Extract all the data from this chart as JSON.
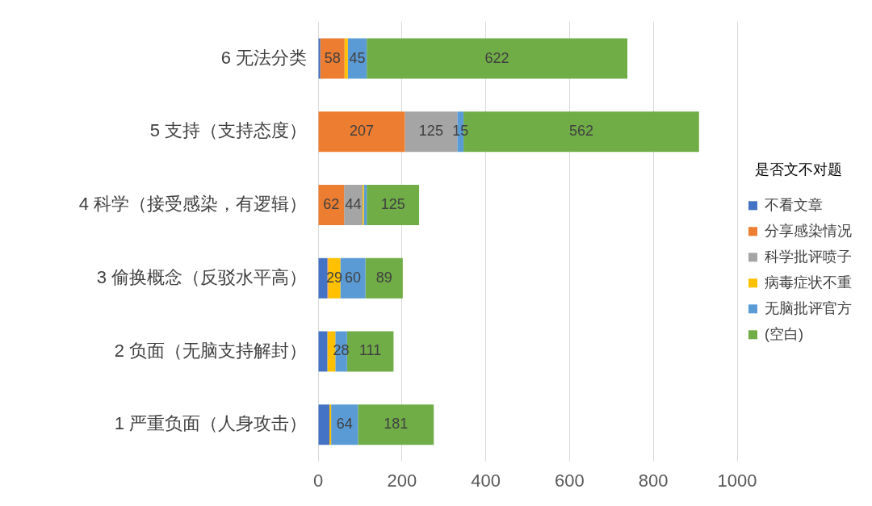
{
  "chart_data": {
    "type": "bar",
    "orientation": "horizontal",
    "stacked": true,
    "categories": [
      "6 无法分类",
      "5 支持（支持态度）",
      "4 科学（接受感染，有逻辑）",
      "3 偷换概念（反驳水平高）",
      "2 负面（无脑支持解封）",
      "1 严重负面（人身攻击）"
    ],
    "series": [
      {
        "name": "不看文章",
        "color": "#4472c4",
        "values": [
          5,
          null,
          null,
          22,
          22,
          27
        ]
      },
      {
        "name": "分享感染情况",
        "color": "#ed7d31",
        "values": [
          58,
          207,
          62,
          2,
          null,
          null
        ],
        "value_labels": [
          "58",
          "207",
          "62",
          null,
          null,
          null
        ]
      },
      {
        "name": "科学批评喷子",
        "color": "#a5a5a5",
        "values": [
          null,
          125,
          44,
          null,
          null,
          null
        ],
        "value_labels": [
          null,
          "125",
          "44",
          null,
          null,
          null
        ]
      },
      {
        "name": "病毒症状不重",
        "color": "#ffc000",
        "values": [
          8,
          null,
          3,
          29,
          19,
          4
        ],
        "value_labels": [
          null,
          null,
          null,
          "29",
          null,
          null
        ]
      },
      {
        "name": "无脑批评官方",
        "color": "#5b9bd5",
        "values": [
          45,
          15,
          7,
          60,
          28,
          64
        ],
        "value_labels": [
          "45",
          "15",
          null,
          "60",
          "28",
          "64"
        ]
      },
      {
        "name": "(空白)",
        "color": "#70ad47",
        "values": [
          622,
          562,
          125,
          89,
          111,
          181
        ],
        "value_labels": [
          "622",
          "562",
          "125",
          "89",
          "111",
          "181"
        ]
      }
    ],
    "xlim": [
      0,
      1000
    ],
    "xticks": [
      0,
      200,
      400,
      600,
      800,
      1000
    ],
    "grid": "x",
    "legend": "right",
    "legend_title": "是否文不对题"
  }
}
